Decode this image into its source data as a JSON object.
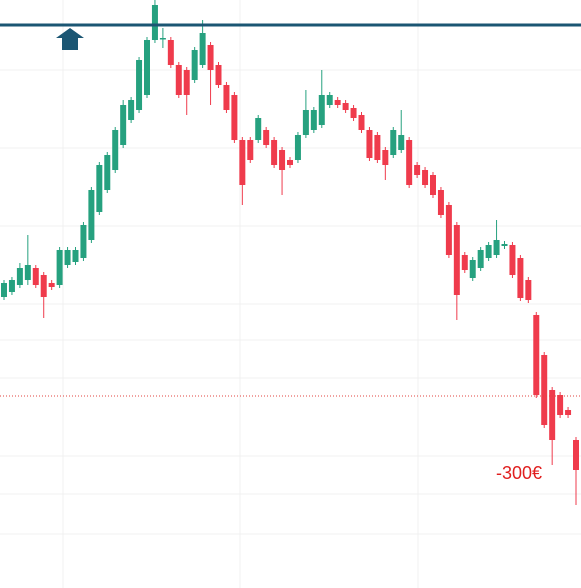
{
  "chart_data": {
    "type": "candlestick",
    "open": [
      291,
      296,
      303,
      308,
      320,
      313,
      305,
      303,
      323,
      326,
      330,
      348,
      376,
      398,
      418,
      443,
      468,
      478,
      493,
      548,
      550,
      548,
      523,
      518,
      508,
      523,
      543,
      523,
      503,
      493,
      448,
      448,
      448,
      458,
      448,
      438,
      428,
      428,
      453,
      458,
      463,
      483,
      488,
      485,
      480,
      473,
      458,
      453,
      438,
      433,
      438,
      448,
      423,
      418,
      413,
      398,
      383,
      363,
      333,
      310,
      320,
      330,
      333,
      342,
      343,
      330,
      308,
      273,
      233,
      198,
      193,
      178,
      148
    ],
    "high": [
      308,
      311,
      325,
      353,
      323,
      316,
      308,
      341,
      341,
      341,
      366,
      401,
      426,
      436,
      461,
      488,
      491,
      531,
      551,
      588,
      560,
      551,
      526,
      521,
      541,
      568,
      546,
      526,
      506,
      496,
      451,
      451,
      473,
      461,
      451,
      441,
      431,
      456,
      498,
      481,
      518,
      496,
      491,
      488,
      483,
      476,
      461,
      456,
      441,
      461,
      478,
      451,
      426,
      421,
      416,
      401,
      386,
      366,
      336,
      331,
      341,
      346,
      368,
      347,
      346,
      333,
      311,
      276,
      236,
      201,
      196,
      181,
      151
    ],
    "low": [
      288,
      293,
      300,
      303,
      300,
      270,
      298,
      300,
      320,
      323,
      327,
      345,
      373,
      395,
      415,
      440,
      465,
      475,
      490,
      545,
      540,
      520,
      490,
      473,
      505,
      520,
      483,
      500,
      475,
      445,
      383,
      425,
      445,
      440,
      420,
      393,
      420,
      425,
      450,
      455,
      460,
      480,
      480,
      475,
      467,
      455,
      427,
      425,
      408,
      430,
      435,
      400,
      410,
      400,
      390,
      370,
      330,
      268,
      315,
      307,
      317,
      327,
      330,
      339,
      310,
      287,
      285,
      190,
      160,
      123,
      170,
      170,
      83
    ],
    "close": [
      305,
      308,
      320,
      323,
      303,
      291,
      301,
      338,
      338,
      338,
      363,
      398,
      423,
      433,
      458,
      483,
      488,
      528,
      548,
      583,
      550,
      523,
      493,
      493,
      538,
      555,
      518,
      503,
      478,
      448,
      403,
      428,
      470,
      443,
      423,
      418,
      423,
      453,
      478,
      478,
      493,
      493,
      483,
      478,
      470,
      458,
      430,
      428,
      423,
      458,
      453,
      403,
      413,
      403,
      393,
      373,
      333,
      293,
      318,
      328,
      338,
      343,
      348,
      344,
      313,
      290,
      288,
      193,
      163,
      148,
      173,
      173,
      118
    ],
    "up_color": "#26a17f",
    "down_color": "#ef3b4c",
    "ylim": [
      0,
      588
    ],
    "reference_lines": [
      {
        "value": 563,
        "color": "#1b5673",
        "style": "solid"
      },
      {
        "value": 192,
        "color": "#e0433f",
        "style": "dotted"
      }
    ],
    "annotation": "-300€",
    "annotation_color": "#e01e1e"
  }
}
